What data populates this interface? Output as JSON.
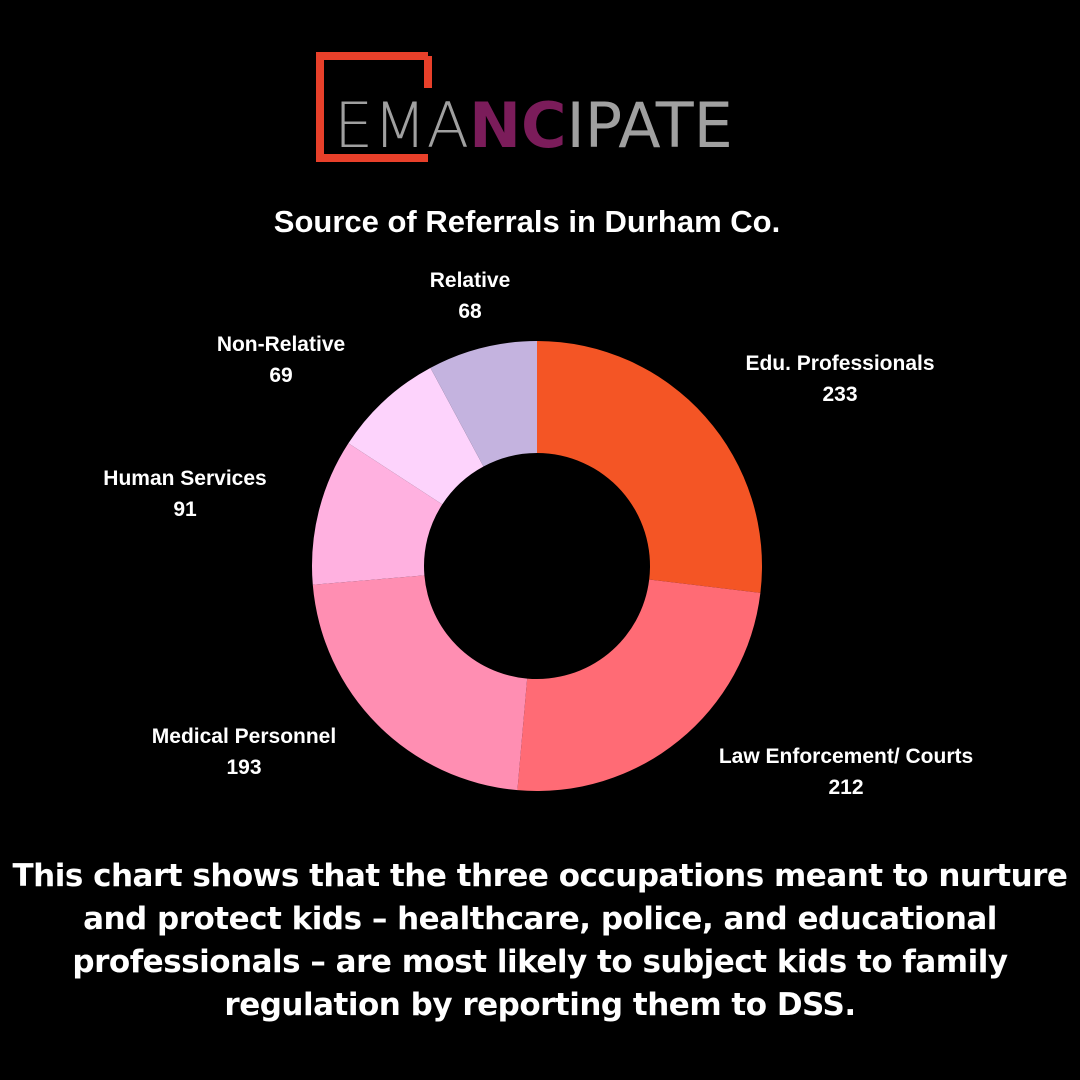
{
  "logo": {
    "parts": [
      "EMA",
      "NC",
      "IPATE"
    ]
  },
  "chart_data": {
    "type": "donut",
    "title": "Source of Referrals in Durham Co.",
    "categories": [
      "Edu. Professionals",
      "Law Enforcement/ Courts",
      "Medical Personnel",
      "Human Services",
      "Non-Relative",
      "Relative"
    ],
    "values": [
      233,
      212,
      193,
      91,
      69,
      68
    ],
    "colors": [
      "#f45525",
      "#ff6b75",
      "#ff8eb2",
      "#ffb1e0",
      "#fdd3fc",
      "#c4b3df"
    ]
  },
  "caption": "This chart shows that the three occupations meant to nurture and protect kids – healthcare, police, and educational professionals – are most likely to subject kids to family regulation by reporting them to DSS."
}
